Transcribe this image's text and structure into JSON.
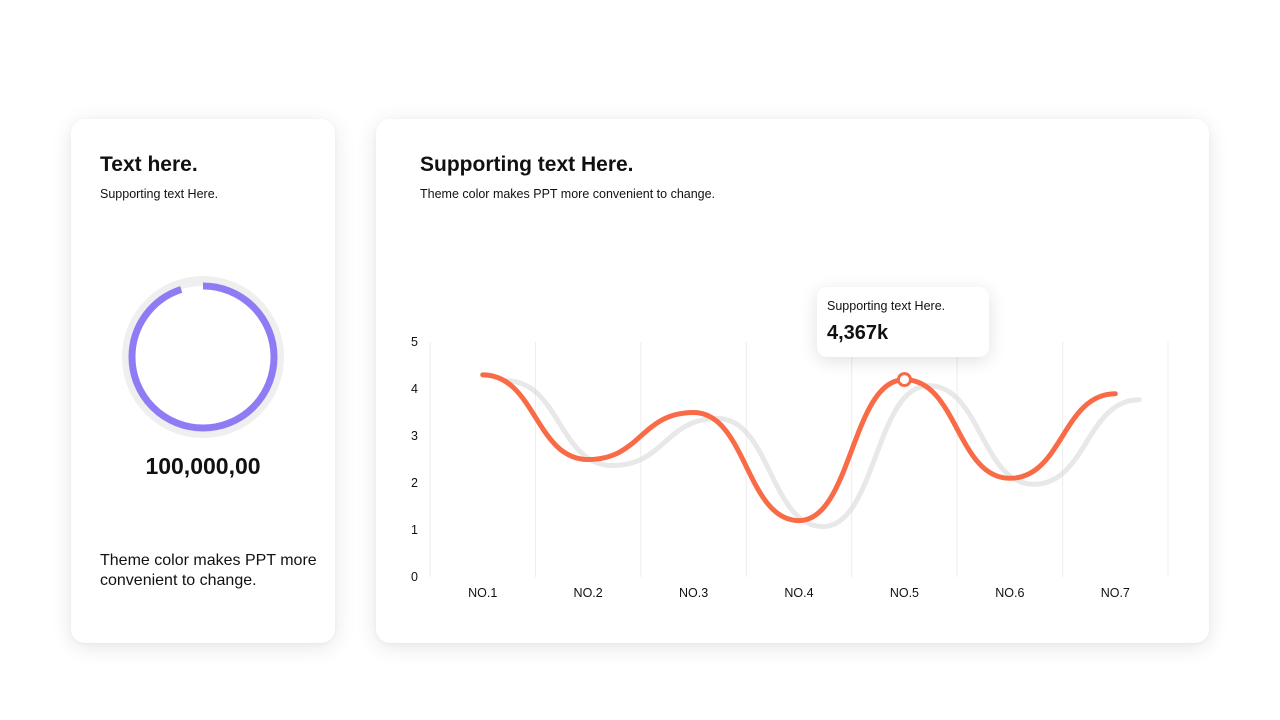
{
  "left_card": {
    "title": "Text here.",
    "subtitle": "Supporting  text Here.",
    "ring": {
      "progress_percent": 95,
      "color": "#8f7cf5",
      "track_color": "#efefef"
    },
    "value": "100,000,00",
    "description": "Theme  color makes PPT more convenient to change."
  },
  "right_card": {
    "title": "Supporting text Here.",
    "subtitle": "Theme  color makes PPT more convenient  to change.",
    "tooltip": {
      "label": "Supporting  text Here.",
      "value": "4,367k"
    }
  },
  "colors": {
    "line": "#f96b47",
    "shadow": "#d9d9d9",
    "grid": "#ececec",
    "text": "#111111"
  },
  "chart_data": {
    "type": "line",
    "categories": [
      "NO.1",
      "NO.2",
      "NO.3",
      "NO.4",
      "NO.5",
      "NO.6",
      "NO.7"
    ],
    "series": [
      {
        "values": [
          4.3,
          2.5,
          3.5,
          1.2,
          4.2,
          2.1,
          3.9
        ]
      }
    ],
    "y_ticks": [
      0,
      1,
      2,
      3,
      4,
      5
    ],
    "ylim": [
      0,
      5
    ],
    "highlight_index": 4,
    "grid": "vertical",
    "smooth": true
  }
}
